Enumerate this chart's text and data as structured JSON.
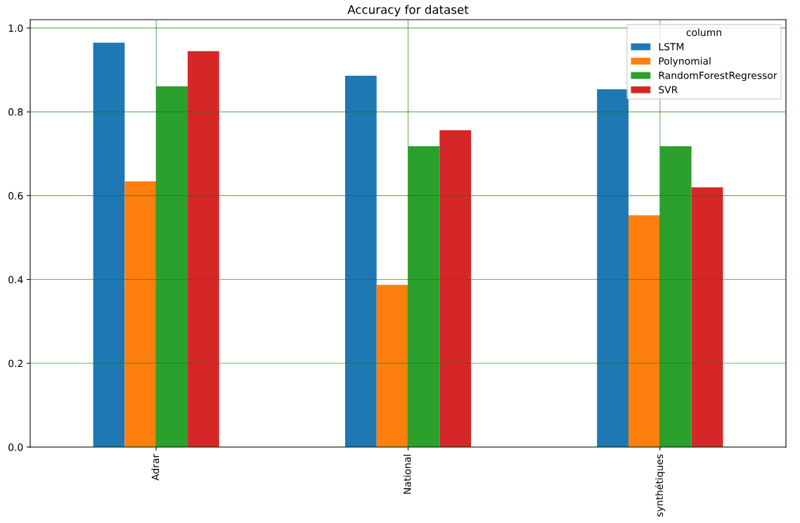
{
  "chart_data": {
    "type": "bar",
    "title": "Accuracy for dataset",
    "categories": [
      "Adrar",
      "National",
      "synthétiques"
    ],
    "series": [
      {
        "name": "LSTM",
        "color": "#1f77b4",
        "values": [
          0.965,
          0.886,
          0.854
        ]
      },
      {
        "name": "Polynomial",
        "color": "#ff7f0e",
        "values": [
          0.634,
          0.387,
          0.553
        ]
      },
      {
        "name": "RandomForestRegressor",
        "color": "#2ca02c",
        "values": [
          0.861,
          0.718,
          0.718
        ]
      },
      {
        "name": "SVR",
        "color": "#d62728",
        "values": [
          0.945,
          0.756,
          0.62
        ]
      }
    ],
    "legend_title": "column",
    "legend": "top right",
    "ylim": [
      0,
      1.02
    ],
    "yticks": [
      {
        "value": 0,
        "label": "0.0"
      },
      0.2,
      0.4,
      0.6,
      0.8,
      {
        "value": 1,
        "label": "1.0"
      }
    ],
    "grid": true
  }
}
